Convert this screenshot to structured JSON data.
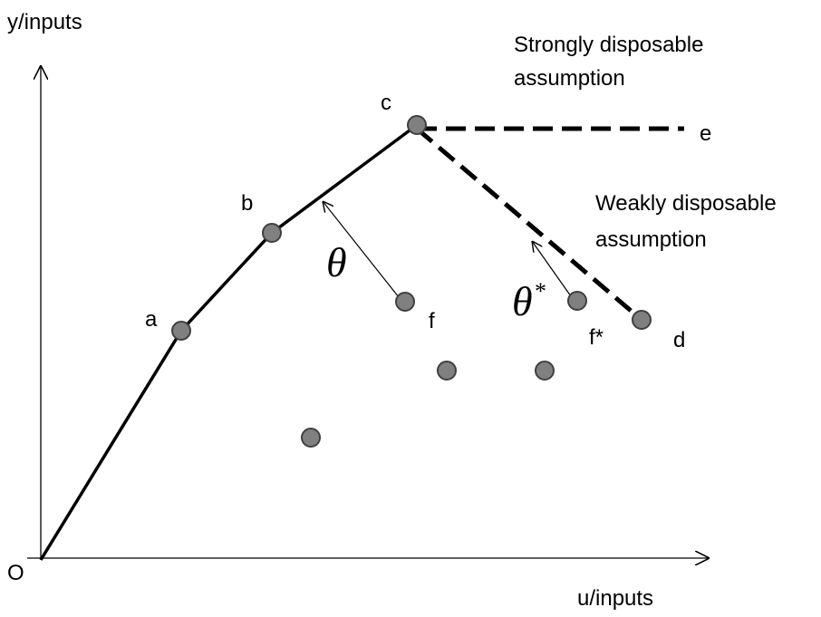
{
  "axes": {
    "y_label": "y/inputs",
    "x_label": "u/inputs",
    "origin": "O"
  },
  "points": [
    {
      "label": "a"
    },
    {
      "label": "b"
    },
    {
      "label": "c"
    },
    {
      "label": "d"
    },
    {
      "label": "e"
    },
    {
      "label": "f"
    },
    {
      "label": "f*"
    }
  ],
  "annotations": {
    "strong": [
      "Strongly disposable",
      "assumption"
    ],
    "weak": [
      "Weakly disposable",
      "assumption"
    ],
    "theta": "θ",
    "theta_star": {
      "symbol": "θ",
      "sup": "*"
    }
  }
}
